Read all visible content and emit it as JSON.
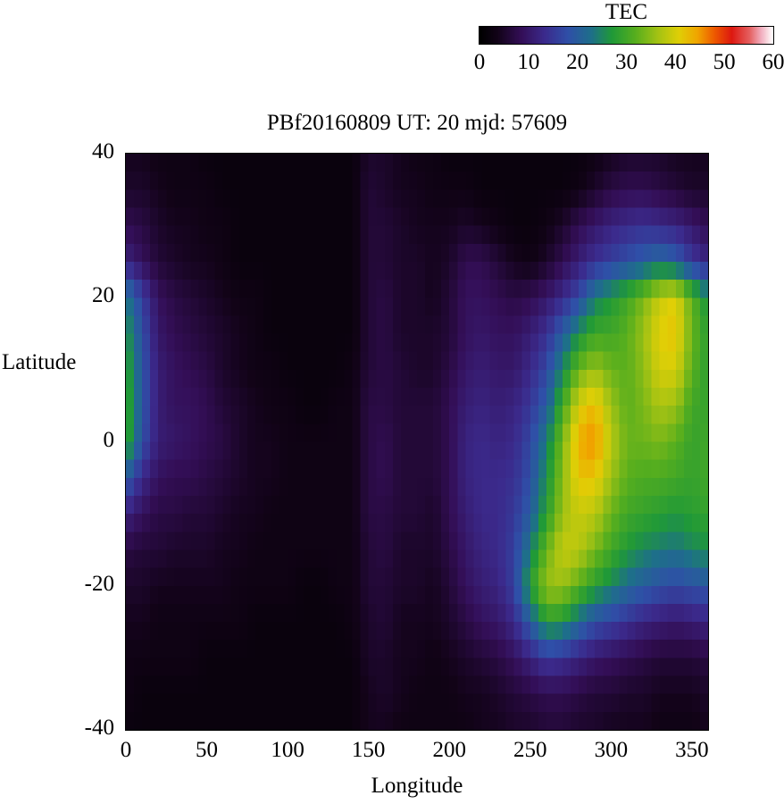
{
  "chart_data": {
    "type": "heatmap",
    "title": "PBf20160809  UT: 20  mjd: 57609",
    "xlabel": "Longitude",
    "ylabel": "Latitude",
    "colorbar_label": "TEC",
    "xlim": [
      0,
      360
    ],
    "ylim": [
      -40,
      40
    ],
    "zlim": [
      0,
      60
    ],
    "x_ticks": [
      0,
      50,
      100,
      150,
      200,
      250,
      300,
      350
    ],
    "y_ticks": [
      40,
      20,
      0,
      -20,
      -40
    ],
    "colorbar_ticks": [
      0,
      10,
      20,
      30,
      40,
      50,
      60
    ],
    "grid": "off",
    "legend": "colorbar-top-right",
    "lon": [
      0,
      10,
      20,
      30,
      40,
      50,
      60,
      70,
      80,
      90,
      100,
      110,
      120,
      130,
      140,
      150,
      160,
      170,
      180,
      190,
      200,
      210,
      220,
      230,
      240,
      250,
      260,
      270,
      280,
      290,
      300,
      310,
      320,
      330,
      340,
      350,
      360
    ],
    "lat": [
      40,
      35,
      30,
      25,
      20,
      15,
      10,
      5,
      0,
      -5,
      -10,
      -15,
      -20,
      -25,
      -30,
      -35,
      -40
    ],
    "tec_grid": [
      [
        4,
        4,
        3,
        3,
        3,
        2,
        2,
        2,
        2,
        2,
        2,
        2,
        2,
        2,
        2,
        5,
        5,
        4,
        3,
        3,
        2,
        2,
        2,
        2,
        2,
        2,
        2,
        2,
        2,
        3,
        4,
        5,
        5,
        5,
        4,
        4,
        4
      ],
      [
        5,
        5,
        4,
        3,
        3,
        3,
        2,
        2,
        2,
        2,
        2,
        2,
        2,
        2,
        2,
        6,
        5,
        4,
        4,
        3,
        3,
        3,
        2,
        2,
        2,
        2,
        2,
        2,
        3,
        5,
        7,
        8,
        8,
        7,
        6,
        5,
        5
      ],
      [
        8,
        7,
        5,
        4,
        4,
        3,
        3,
        2,
        2,
        2,
        2,
        2,
        2,
        2,
        2,
        6,
        6,
        5,
        4,
        4,
        4,
        5,
        4,
        3,
        2,
        2,
        3,
        5,
        8,
        10,
        12,
        13,
        14,
        13,
        12,
        10,
        8
      ],
      [
        12,
        9,
        6,
        5,
        4,
        4,
        3,
        2,
        2,
        2,
        2,
        2,
        2,
        2,
        2,
        6,
        6,
        5,
        5,
        4,
        5,
        8,
        8,
        6,
        4,
        3,
        5,
        8,
        11,
        14,
        16,
        18,
        20,
        22,
        20,
        15,
        12
      ],
      [
        24,
        16,
        9,
        7,
        6,
        5,
        4,
        3,
        3,
        2,
        2,
        2,
        2,
        2,
        2,
        6,
        7,
        5,
        5,
        4,
        6,
        9,
        9,
        8,
        7,
        8,
        10,
        13,
        17,
        24,
        27,
        30,
        34,
        39,
        41,
        32,
        26
      ],
      [
        27,
        18,
        10,
        8,
        7,
        6,
        5,
        4,
        3,
        2,
        2,
        2,
        2,
        2,
        2,
        6,
        7,
        5,
        5,
        5,
        6,
        9,
        10,
        9,
        9,
        11,
        14,
        20,
        26,
        30,
        30,
        32,
        36,
        41,
        42,
        33,
        28
      ],
      [
        29,
        19,
        11,
        9,
        8,
        7,
        5,
        4,
        3,
        3,
        2,
        2,
        2,
        2,
        3,
        6,
        7,
        6,
        5,
        5,
        7,
        10,
        11,
        10,
        10,
        13,
        17,
        25,
        33,
        36,
        33,
        32,
        35,
        40,
        40,
        32,
        28
      ],
      [
        30,
        19,
        11,
        9,
        9,
        8,
        6,
        5,
        4,
        3,
        3,
        2,
        2,
        3,
        3,
        7,
        7,
        6,
        6,
        6,
        8,
        11,
        12,
        11,
        12,
        15,
        20,
        30,
        40,
        43,
        36,
        32,
        34,
        37,
        36,
        30,
        29
      ],
      [
        30,
        18,
        11,
        10,
        9,
        8,
        7,
        5,
        4,
        4,
        3,
        3,
        3,
        3,
        3,
        7,
        8,
        6,
        6,
        6,
        8,
        12,
        13,
        12,
        13,
        17,
        24,
        34,
        44,
        46,
        38,
        33,
        33,
        34,
        32,
        29,
        30
      ],
      [
        20,
        13,
        9,
        8,
        8,
        7,
        6,
        5,
        4,
        4,
        3,
        3,
        3,
        3,
        3,
        7,
        8,
        6,
        6,
        6,
        8,
        12,
        13,
        13,
        14,
        18,
        26,
        35,
        42,
        42,
        36,
        32,
        31,
        31,
        30,
        29,
        30
      ],
      [
        12,
        9,
        7,
        7,
        6,
        6,
        5,
        4,
        4,
        3,
        3,
        3,
        3,
        3,
        3,
        7,
        7,
        6,
        6,
        5,
        8,
        11,
        13,
        13,
        15,
        20,
        28,
        36,
        39,
        38,
        33,
        30,
        29,
        28,
        27,
        28,
        29
      ],
      [
        7,
        6,
        6,
        5,
        5,
        5,
        4,
        4,
        3,
        3,
        3,
        3,
        3,
        3,
        3,
        6,
        7,
        5,
        5,
        5,
        7,
        10,
        12,
        13,
        16,
        24,
        33,
        39,
        38,
        34,
        30,
        27,
        25,
        24,
        23,
        25,
        26
      ],
      [
        5,
        5,
        4,
        4,
        4,
        4,
        4,
        3,
        3,
        3,
        3,
        2,
        2,
        3,
        3,
        6,
        6,
        5,
        5,
        4,
        6,
        9,
        11,
        12,
        16,
        28,
        36,
        36,
        32,
        28,
        25,
        22,
        20,
        18,
        17,
        18,
        19
      ],
      [
        4,
        4,
        3,
        3,
        3,
        3,
        3,
        3,
        2,
        2,
        2,
        2,
        2,
        2,
        3,
        5,
        6,
        4,
        4,
        4,
        5,
        7,
        9,
        10,
        13,
        20,
        28,
        27,
        22,
        18,
        16,
        14,
        12,
        11,
        10,
        11,
        12
      ],
      [
        3,
        3,
        3,
        3,
        3,
        2,
        2,
        2,
        2,
        2,
        2,
        2,
        2,
        2,
        2,
        5,
        5,
        4,
        4,
        3,
        4,
        5,
        6,
        7,
        9,
        12,
        15,
        14,
        12,
        10,
        9,
        8,
        7,
        6,
        6,
        6,
        7
      ],
      [
        3,
        2,
        2,
        2,
        2,
        2,
        2,
        2,
        2,
        2,
        2,
        2,
        2,
        2,
        2,
        4,
        5,
        4,
        3,
        3,
        3,
        4,
        4,
        5,
        6,
        7,
        8,
        8,
        7,
        6,
        6,
        5,
        5,
        4,
        4,
        4,
        5
      ],
      [
        2,
        2,
        2,
        2,
        2,
        2,
        2,
        2,
        2,
        2,
        2,
        2,
        2,
        2,
        2,
        4,
        4,
        3,
        3,
        3,
        3,
        3,
        4,
        4,
        5,
        5,
        6,
        6,
        5,
        5,
        4,
        4,
        4,
        3,
        3,
        3,
        4
      ]
    ],
    "palette_stops": [
      [
        0.0,
        "#000000"
      ],
      [
        0.06,
        "#120318"
      ],
      [
        0.14,
        "#330e56"
      ],
      [
        0.22,
        "#3b2a8c"
      ],
      [
        0.3,
        "#2f4fa8"
      ],
      [
        0.38,
        "#1e6f8a"
      ],
      [
        0.45,
        "#1f9938"
      ],
      [
        0.53,
        "#56ae1e"
      ],
      [
        0.61,
        "#a6c313"
      ],
      [
        0.68,
        "#e0cf06"
      ],
      [
        0.74,
        "#f0a800"
      ],
      [
        0.8,
        "#ee5a00"
      ],
      [
        0.86,
        "#dd1810"
      ],
      [
        0.92,
        "#e55f5f"
      ],
      [
        0.96,
        "#f2aebe"
      ],
      [
        1.0,
        "#ffffff"
      ]
    ]
  }
}
